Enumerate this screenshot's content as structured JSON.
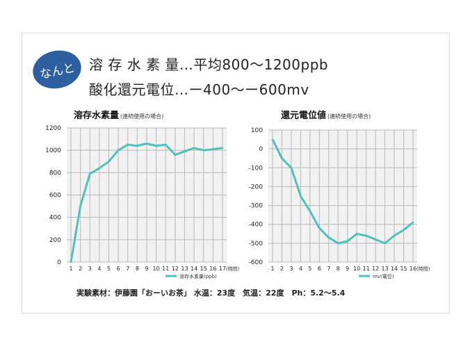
{
  "badge": "なんと",
  "headline": {
    "line1": "溶 存 水 素 量…平均800〜1200ppb",
    "line2": "酸化還元電位…ー400〜ー600mv"
  },
  "footer": "実験素材：伊藤園「おーいお茶」 水温：23度　気温：22度　Ph：5.2〜5.4",
  "colors": {
    "line": "#4fc1bc",
    "grid": "#b8b8b8",
    "plot_bg": "#f2f2f2",
    "badge": "#2e5f9e"
  },
  "chart_data": [
    {
      "type": "line",
      "title": "溶存水素量",
      "subtitle": "(連続使用の場合)",
      "x": [
        1,
        2,
        3,
        4,
        5,
        6,
        7,
        8,
        9,
        10,
        11,
        12,
        13,
        14,
        15,
        16,
        17
      ],
      "x_tick_labels": [
        "1",
        "2",
        "3",
        "4",
        "5",
        "6",
        "7",
        "8",
        "9",
        "10",
        "11",
        "12",
        "13",
        "14",
        "15",
        "16",
        "17"
      ],
      "x_unit_label": "(時間)",
      "ylim": [
        0,
        1200
      ],
      "y_ticks": [
        0,
        200,
        400,
        600,
        800,
        1000,
        1200
      ],
      "grid": true,
      "series": [
        {
          "name": "溶存水素量(ppb)",
          "values": [
            0,
            500,
            790,
            840,
            900,
            1000,
            1050,
            1040,
            1060,
            1040,
            1050,
            960,
            990,
            1020,
            1000,
            1010,
            1020
          ]
        }
      ]
    },
    {
      "type": "line",
      "title": "還元電位値",
      "subtitle": "(連続使用の場合)",
      "x": [
        1,
        2,
        3,
        4,
        5,
        6,
        7,
        8,
        9,
        10,
        11,
        12,
        13,
        14,
        15,
        16
      ],
      "x_tick_labels": [
        "1",
        "2",
        "3",
        "4",
        "5",
        "6",
        "7",
        "8",
        "9",
        "10",
        "11",
        "12",
        "13",
        "14",
        "15",
        "16"
      ],
      "x_unit_label": "(時間)",
      "ylim": [
        -600,
        100
      ],
      "y_ticks": [
        100,
        0,
        -100,
        -200,
        -300,
        -400,
        -500,
        -600
      ],
      "grid": true,
      "series": [
        {
          "name": "mv(電位)",
          "values": [
            50,
            -50,
            -100,
            -250,
            -330,
            -420,
            -470,
            -500,
            -490,
            -450,
            -460,
            -480,
            -500,
            -460,
            -430,
            -390
          ]
        }
      ]
    }
  ]
}
